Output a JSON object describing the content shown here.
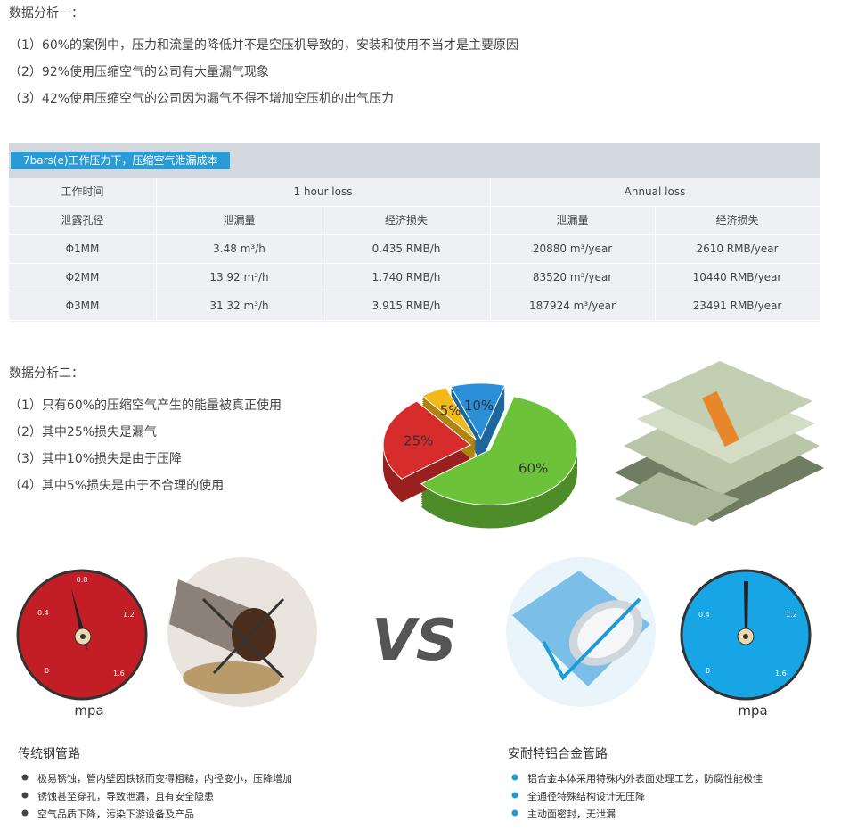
{
  "analysis1": {
    "title": "数据分析一：",
    "items": [
      "（1）60%的案例中，压力和流量的降低并不是空压机导致的，安装和使用不当才是主要原因",
      "（2）92%使用压缩空气的公司有大量漏气现象",
      "（3）42%使用压缩空气的公司因为漏气不得不增加空压机的出气压力"
    ]
  },
  "table": {
    "caption": "7bars(e)工作压力下，压缩空气泄漏成本",
    "header1": [
      "工作时间",
      "1 hour loss",
      "Annual loss"
    ],
    "header2": [
      "泄露孔径",
      "泄漏量",
      "经济损失",
      "泄漏量",
      "经济损失"
    ],
    "rows": [
      [
        "Φ1MM",
        "3.48 m³/h",
        "0.435 RMB/h",
        "20880 m³/year",
        "2610 RMB/year"
      ],
      [
        "Φ2MM",
        "13.92 m³/h",
        "1.740 RMB/h",
        "83520 m³/year",
        "10440 RMB/year"
      ],
      [
        "Φ3MM",
        "31.32 m³/h",
        "3.915 RMB/h",
        "187924 m³/year",
        "23491 RMB/year"
      ]
    ]
  },
  "analysis2": {
    "title": "数据分析二：",
    "items": [
      "（1）只有60%的压缩空气产生的能量被真正使用",
      "（2）其中25%损失是漏气",
      "（3）其中10%损失是由于压降",
      "（4）其中5%损失是由于不合理的使用"
    ]
  },
  "chart_data": {
    "type": "pie",
    "values": [
      10,
      60,
      25,
      5
    ],
    "value_labels": [
      "10%",
      "60%",
      "25%",
      "5%"
    ],
    "colors": [
      "#2a8fd8",
      "#6cc33a",
      "#d62c2c",
      "#f3b81a"
    ]
  },
  "gauge_left": {
    "ticks": [
      "0.8",
      "0.4",
      "1.2",
      "0",
      "1.6"
    ],
    "unit": "mpa"
  },
  "gauge_right": {
    "ticks": [
      "0.4",
      "1.2",
      "0",
      "1.6"
    ],
    "unit": "mpa"
  },
  "vs": "VS",
  "left_list": {
    "title": "传统钢管路",
    "items": [
      "极易锈蚀，管内壁因铁锈而变得粗糙，内径变小，压降增加",
      "锈蚀甚至穿孔，导致泄漏，且有安全隐患",
      "空气品质下降，污染下游设备及产品"
    ]
  },
  "right_list": {
    "title": "安耐特铝合金管路",
    "items": [
      "铝合金本体采用特殊内外表面处理工艺，防腐性能极佳",
      "全通径特殊结构设计无压降",
      "主动面密封，无泄漏"
    ]
  }
}
